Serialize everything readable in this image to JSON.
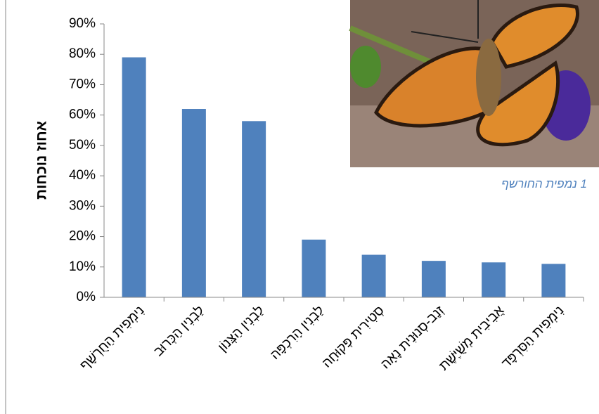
{
  "chart_data": {
    "type": "bar",
    "y_label": "אחוז נוכחות",
    "categories": [
      "נִימְפִית הַחֻרְשָׁף",
      "לַבְנִין הַכְּרוּב",
      "לַבְנִין הַצְּנוֹן",
      "לַבְנִין הָרִכְפָּה",
      "סְטִירִית פְּקוּחָה",
      "זְנַב-סְנוּנִית נָאָה",
      "אֲבִיבִית מְשֻׁיֶּשֶׁת",
      "נִימְפִית הַסִּרְפָּד"
    ],
    "values": [
      79,
      62,
      58,
      19,
      14,
      12,
      11.5,
      11
    ],
    "color": "#4f81bd",
    "ylim": [
      0,
      90
    ],
    "yticks": [
      {
        "value": 0,
        "label": "0%"
      },
      {
        "value": 10,
        "label": "10%"
      },
      {
        "value": 20,
        "label": "20%"
      },
      {
        "value": 30,
        "label": "30%"
      },
      {
        "value": 40,
        "label": "40%"
      },
      {
        "value": 50,
        "label": "50%"
      },
      {
        "value": 60,
        "label": "60%"
      },
      {
        "value": 70,
        "label": "70%"
      },
      {
        "value": 80,
        "label": "80%"
      },
      {
        "value": 90,
        "label": "90%"
      }
    ],
    "grid": false,
    "image_caption": "1 נמפית החורשף"
  }
}
